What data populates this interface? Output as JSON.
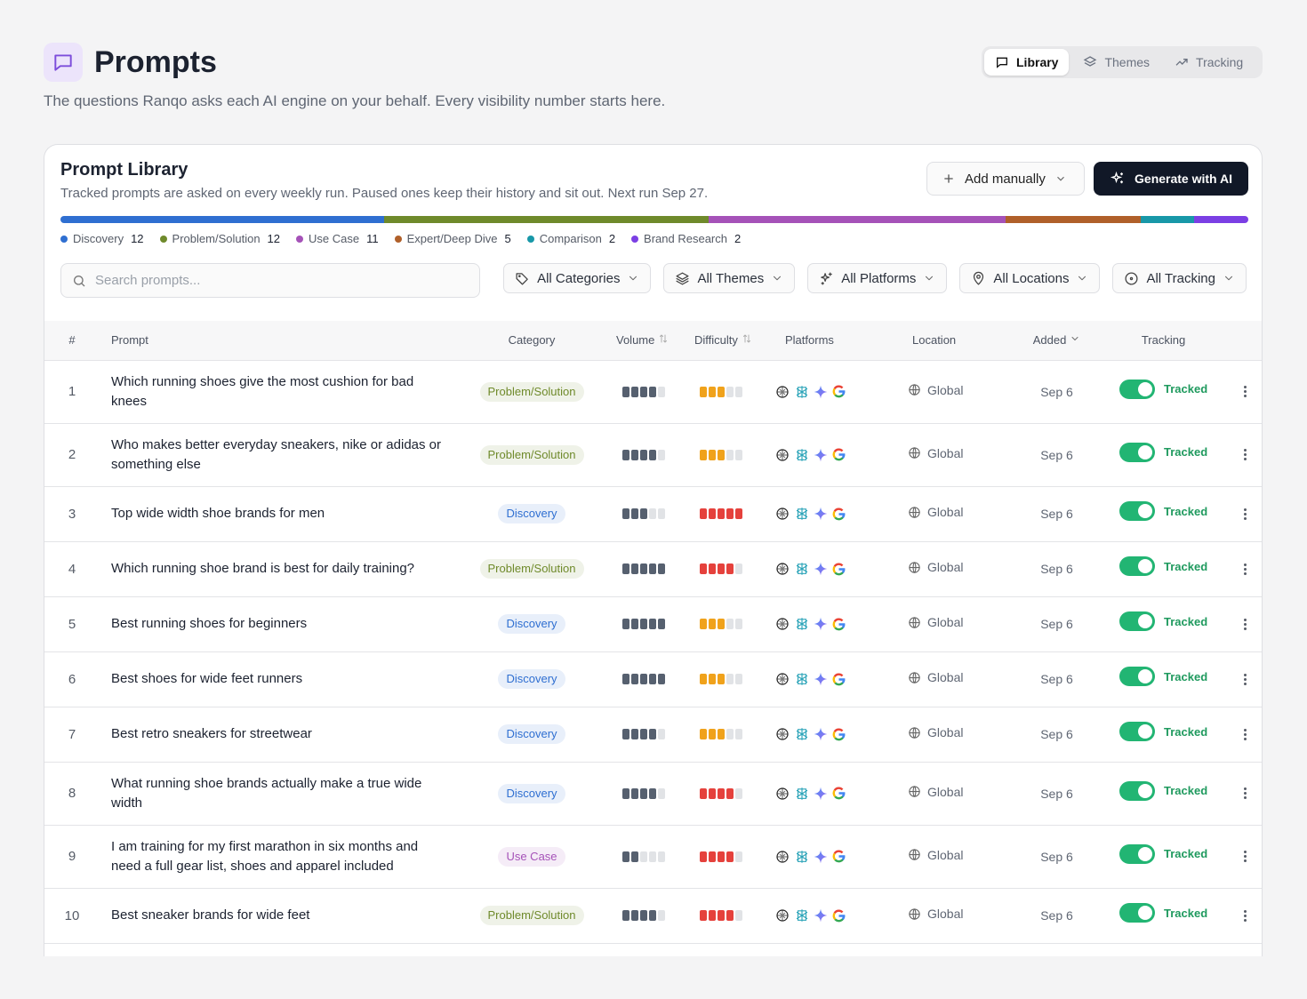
{
  "header": {
    "title": "Prompts",
    "subtitle": "The questions Ranqo asks each AI engine on your behalf. Every visibility number starts here."
  },
  "tabs": [
    "Library",
    "Themes",
    "Tracking"
  ],
  "library": {
    "title": "Prompt Library",
    "description": "Tracked prompts are asked on every weekly run. Paused ones keep their history and sit out. Next run Sep 27.",
    "add_button": "Add manually",
    "generate_button": "Generate with AI",
    "categories": [
      {
        "name": "Discovery",
        "count": 12,
        "color": "#2f6fd1"
      },
      {
        "name": "Problem/Solution",
        "count": 12,
        "color": "#6f8a2b"
      },
      {
        "name": "Use Case",
        "count": 11,
        "color": "#a552b8"
      },
      {
        "name": "Expert/Deep Dive",
        "count": 5,
        "color": "#b0602a"
      },
      {
        "name": "Comparison",
        "count": 2,
        "color": "#1898a8"
      },
      {
        "name": "Brand Research",
        "count": 2,
        "color": "#7b3fe4"
      }
    ],
    "search_placeholder": "Search prompts...",
    "filters": [
      "All Categories",
      "All Themes",
      "All Platforms",
      "All Locations",
      "All Tracking"
    ],
    "table": {
      "columns": [
        "#",
        "Prompt",
        "Category",
        "Volume",
        "Difficulty",
        "Platforms",
        "Location",
        "Added",
        "Tracking"
      ],
      "level_max": 5,
      "rows": [
        {
          "number": 1,
          "prompt": "Which running shoes give the most cushion for bad knees",
          "category": "Problem/Solution",
          "volume": 4,
          "difficulty": 3,
          "location": "Global",
          "added": "Sep 6",
          "tracking": "Tracked"
        },
        {
          "number": 2,
          "prompt": "Who makes better everyday sneakers, nike or adidas or something else",
          "category": "Problem/Solution",
          "volume": 4,
          "difficulty": 3,
          "location": "Global",
          "added": "Sep 6",
          "tracking": "Tracked"
        },
        {
          "number": 3,
          "prompt": "Top wide width shoe brands for men",
          "category": "Discovery",
          "volume": 3,
          "difficulty": 5,
          "location": "Global",
          "added": "Sep 6",
          "tracking": "Tracked"
        },
        {
          "number": 4,
          "prompt": "Which running shoe brand is best for daily training?",
          "category": "Problem/Solution",
          "volume": 5,
          "difficulty": 4,
          "location": "Global",
          "added": "Sep 6",
          "tracking": "Tracked"
        },
        {
          "number": 5,
          "prompt": "Best running shoes for beginners",
          "category": "Discovery",
          "volume": 5,
          "difficulty": 3,
          "location": "Global",
          "added": "Sep 6",
          "tracking": "Tracked"
        },
        {
          "number": 6,
          "prompt": "Best shoes for wide feet runners",
          "category": "Discovery",
          "volume": 5,
          "difficulty": 3,
          "location": "Global",
          "added": "Sep 6",
          "tracking": "Tracked"
        },
        {
          "number": 7,
          "prompt": "Best retro sneakers for streetwear",
          "category": "Discovery",
          "volume": 4,
          "difficulty": 3,
          "location": "Global",
          "added": "Sep 6",
          "tracking": "Tracked"
        },
        {
          "number": 8,
          "prompt": "What running shoe brands actually make a true wide width",
          "category": "Discovery",
          "volume": 4,
          "difficulty": 4,
          "location": "Global",
          "added": "Sep 6",
          "tracking": "Tracked"
        },
        {
          "number": 9,
          "prompt": "I am training for my first marathon in six months and need a full gear list, shoes and apparel included",
          "category": "Use Case",
          "volume": 2,
          "difficulty": 4,
          "location": "Global",
          "added": "Sep 6",
          "tracking": "Tracked"
        },
        {
          "number": 10,
          "prompt": "Best sneaker brands for wide feet",
          "category": "Problem/Solution",
          "volume": 4,
          "difficulty": 4,
          "location": "Global",
          "added": "Sep 6",
          "tracking": "Tracked"
        }
      ]
    }
  }
}
